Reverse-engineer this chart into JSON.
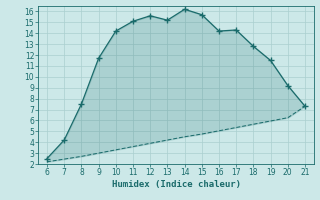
{
  "xlabel": "Humidex (Indice chaleur)",
  "bg_color": "#cce8e8",
  "line_color": "#1a6b6b",
  "grid_color": "#aacfcf",
  "x_data": [
    6,
    7,
    8,
    9,
    10,
    11,
    12,
    13,
    14,
    15,
    16,
    17,
    18,
    19,
    20,
    21
  ],
  "y_upper": [
    2.5,
    4.2,
    7.5,
    11.7,
    14.2,
    15.1,
    15.6,
    15.2,
    16.2,
    15.7,
    14.2,
    14.3,
    12.8,
    11.5,
    9.2,
    7.3
  ],
  "y_lower": [
    2.2,
    2.45,
    2.7,
    3.0,
    3.3,
    3.6,
    3.9,
    4.2,
    4.5,
    4.75,
    5.05,
    5.35,
    5.65,
    5.95,
    6.25,
    7.3
  ],
  "xlim": [
    5.5,
    21.5
  ],
  "ylim": [
    2,
    16.5
  ],
  "xticks": [
    6,
    7,
    8,
    9,
    10,
    11,
    12,
    13,
    14,
    15,
    16,
    17,
    18,
    19,
    20,
    21
  ],
  "yticks": [
    2,
    3,
    4,
    5,
    6,
    7,
    8,
    9,
    10,
    11,
    12,
    13,
    14,
    15,
    16
  ],
  "fill_alpha": 0.18,
  "line_width": 0.9,
  "marker_size": 4,
  "tick_fontsize": 5.5,
  "xlabel_fontsize": 6.5
}
